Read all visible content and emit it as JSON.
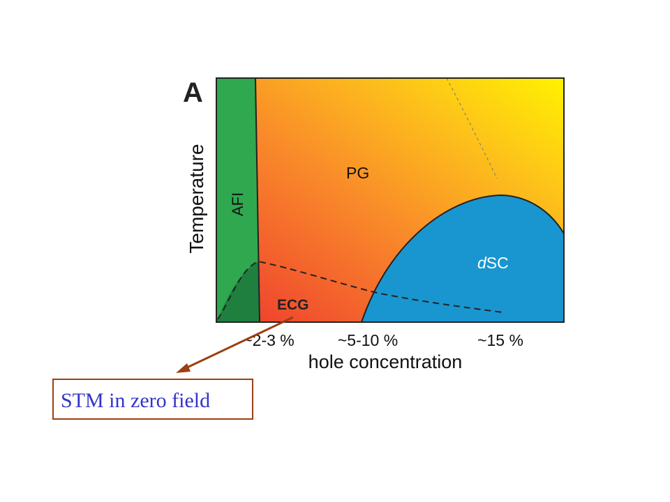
{
  "panel_letter": "A",
  "axes": {
    "ylabel": "Temperature",
    "xlabel": "hole concentration",
    "xticks": [
      "~2-3 %",
      "~5-10 %",
      "~15 %"
    ]
  },
  "regions": {
    "afi": "AFI",
    "pg": "PG",
    "dsc_italic": "d",
    "dsc_rest": "SC",
    "ecg": "ECG"
  },
  "callout": {
    "text": "STM in zero field"
  },
  "colors": {
    "afi_green": "#2fa84f",
    "afi_dark_green": "#1f7f3f",
    "dsc_blue": "#1996cf",
    "pg_orange": "#f98a2a",
    "yellow": "#fff200",
    "ecg_red": "#ee3a2f",
    "arrow": "#9c3f12",
    "callout_text": "#3333cc"
  }
}
